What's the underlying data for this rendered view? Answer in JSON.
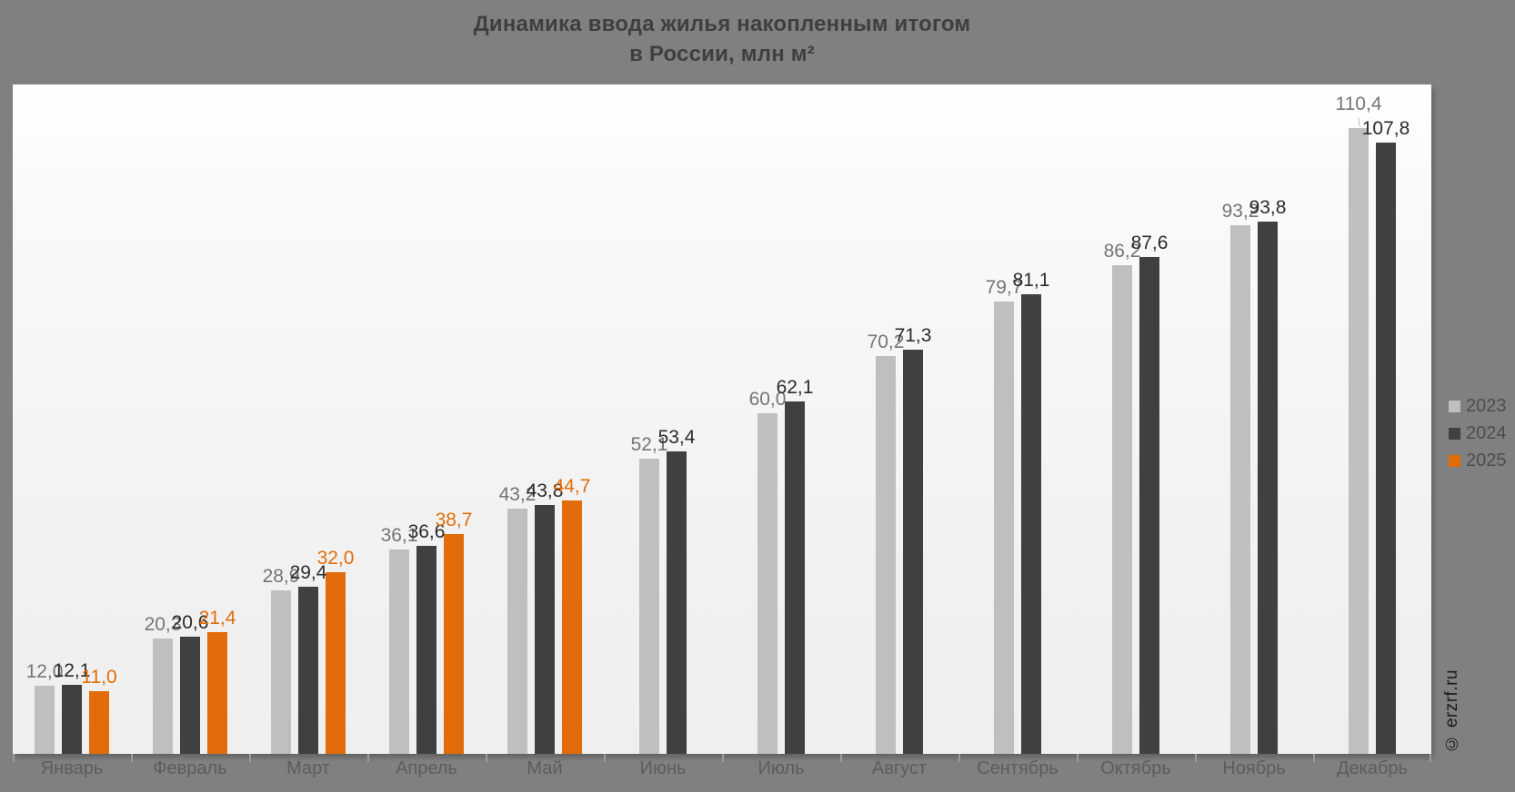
{
  "header": {
    "line1": "Динамика ввода жилья накопленным итогом",
    "line2": "в России, млн м²"
  },
  "watermark": "© erzrf.ru",
  "chart_data": {
    "type": "bar",
    "title": "Динамика ввода жилья накопленным итогом в России, млн м²",
    "ylabel": "млн м²",
    "ylim": [
      0,
      118
    ],
    "grid": false,
    "legend_position": "right",
    "decimal_separator": ",",
    "categories": [
      "Январь",
      "Февраль",
      "Март",
      "Апрель",
      "Май",
      "Июнь",
      "Июль",
      "Август",
      "Сентябрь",
      "Октябрь",
      "Ноябрь",
      "Декабрь"
    ],
    "series": [
      {
        "name": "2023",
        "color": "#BFBFBF",
        "label_color": "#757575",
        "values": [
          12.0,
          20.3,
          28.9,
          36.1,
          43.2,
          52.1,
          60.0,
          70.2,
          79.7,
          86.2,
          93.2,
          110.4
        ]
      },
      {
        "name": "2024",
        "color": "#404040",
        "label_color": "#2B2B2B",
        "values": [
          12.1,
          20.6,
          29.4,
          36.6,
          43.8,
          53.4,
          62.1,
          71.3,
          81.1,
          87.6,
          93.8,
          107.8
        ]
      },
      {
        "name": "2025",
        "color": "#E26C09",
        "label_color": "#E26C09",
        "values": [
          11.0,
          21.4,
          32.0,
          38.7,
          44.7,
          null,
          null,
          null,
          null,
          null,
          null,
          null
        ]
      }
    ],
    "label_leader": {
      "series": 0,
      "index": 11
    }
  }
}
